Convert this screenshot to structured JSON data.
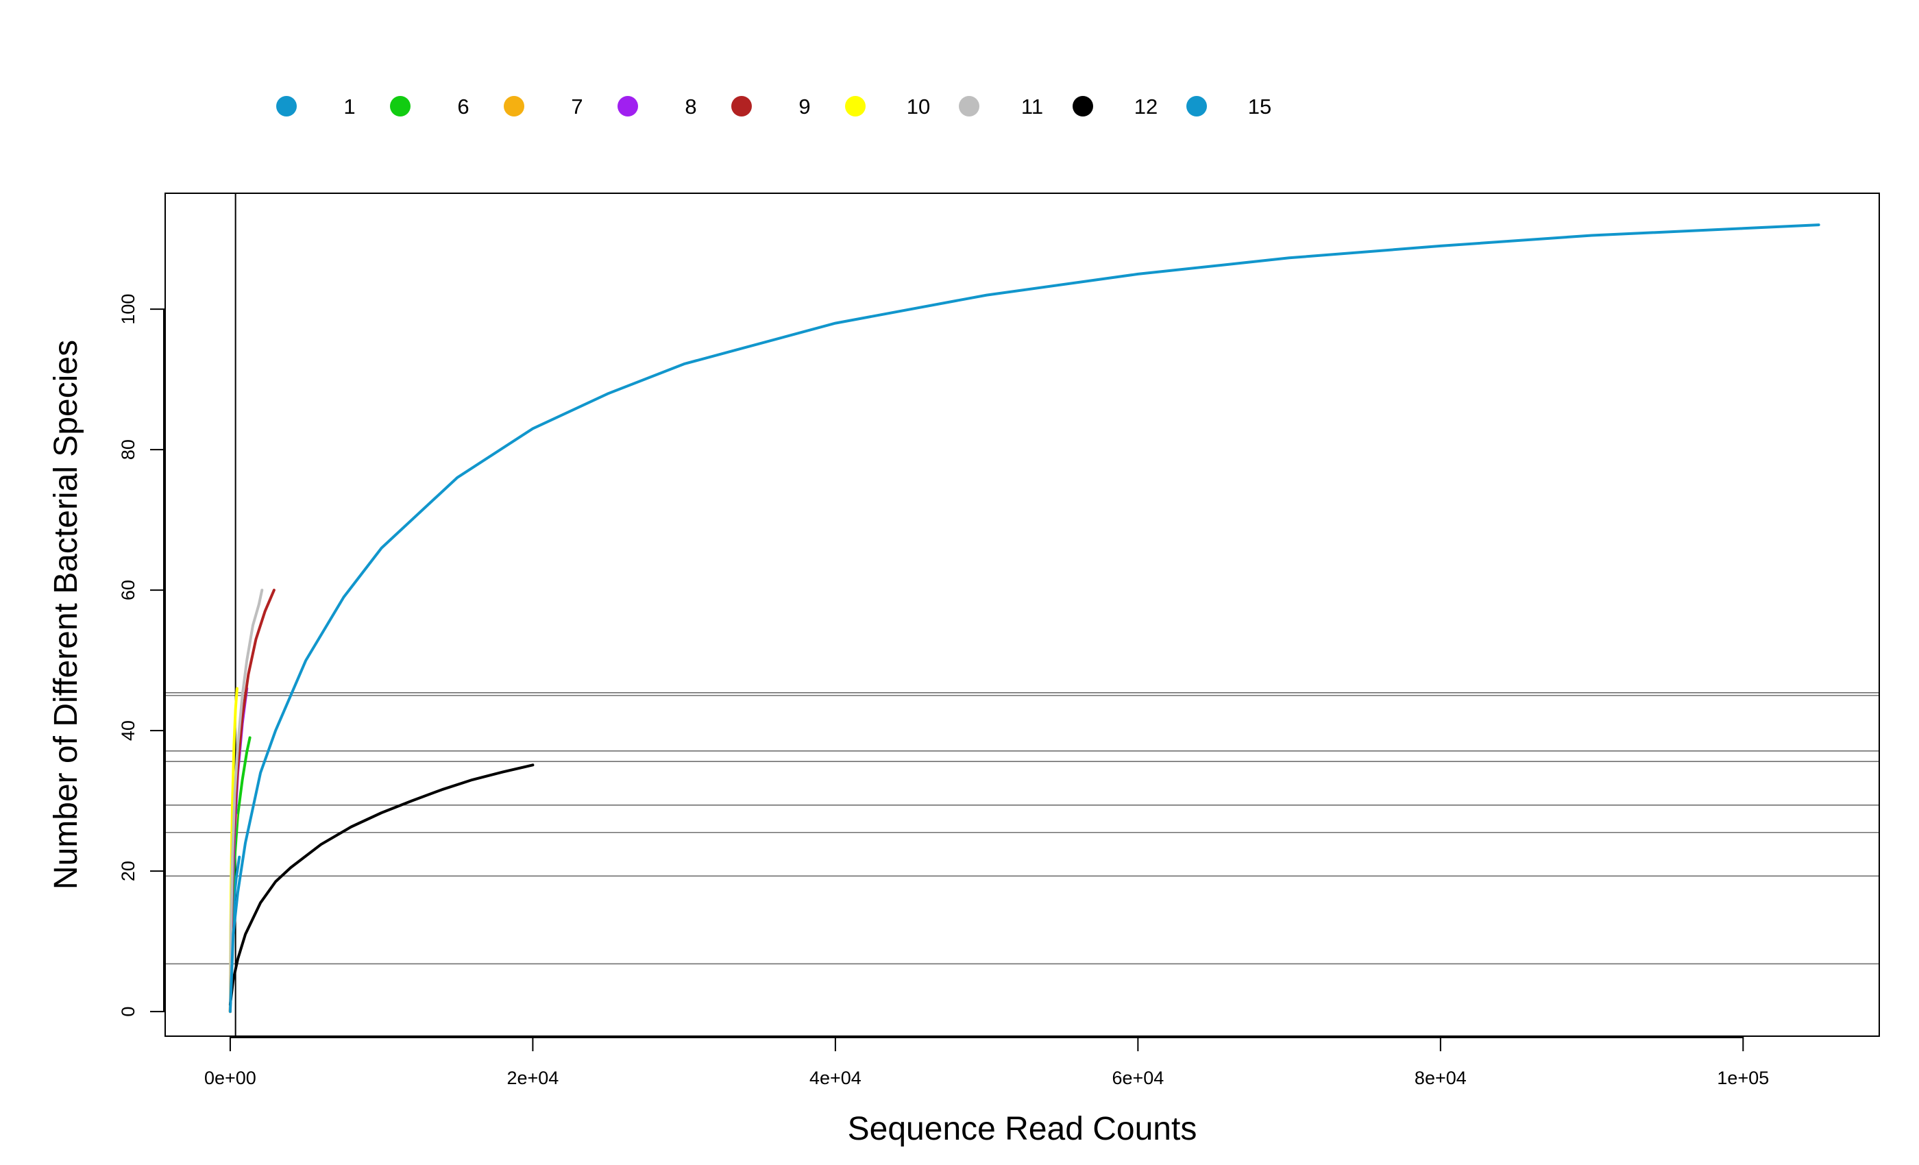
{
  "chart_data": {
    "type": "line",
    "title": "",
    "xlabel": "Sequence Read Counts",
    "ylabel": "Number of Different Bacterial Species",
    "xlim": [
      -4300,
      109000
    ],
    "ylim": [
      -3.5,
      116.5
    ],
    "xticks": [
      {
        "value": 0,
        "label": "0e+00"
      },
      {
        "value": 20000,
        "label": "2e+04"
      },
      {
        "value": 40000,
        "label": "4e+04"
      },
      {
        "value": 60000,
        "label": "6e+04"
      },
      {
        "value": 80000,
        "label": "8e+04"
      },
      {
        "value": 100000,
        "label": "1e+05"
      }
    ],
    "yticks": [
      {
        "value": 0,
        "label": "0"
      },
      {
        "value": 20,
        "label": "20"
      },
      {
        "value": 40,
        "label": "40"
      },
      {
        "value": 60,
        "label": "60"
      },
      {
        "value": 80,
        "label": "80"
      },
      {
        "value": 100,
        "label": "100"
      }
    ],
    "grid": false,
    "legend_position": "top",
    "vertical_reference_line": 350,
    "horizontal_reference_lines": [
      6.8,
      19.3,
      25.5,
      29.4,
      35.6,
      37.1,
      45.0,
      45.4
    ],
    "series": [
      {
        "name": "1",
        "color": "#1196CC",
        "x": [
          0,
          100,
          200,
          300,
          400,
          600
        ],
        "y": [
          0,
          10,
          14,
          17,
          19,
          22
        ]
      },
      {
        "name": "6",
        "color": "#11CC11",
        "x": [
          0,
          50,
          150,
          300,
          500,
          800,
          1100,
          1300
        ],
        "y": [
          0,
          8,
          16,
          22,
          28,
          33,
          37,
          39
        ]
      },
      {
        "name": "7",
        "color": "#F5B011",
        "x": [
          0,
          50,
          100,
          200,
          300,
          400
        ],
        "y": [
          0,
          10,
          16,
          22,
          26,
          28
        ]
      },
      {
        "name": "8",
        "color": "#A020F0",
        "x": [
          0,
          50,
          150,
          300,
          500,
          800,
          1100
        ],
        "y": [
          0,
          9,
          18,
          26,
          34,
          41,
          46
        ]
      },
      {
        "name": "9",
        "color": "#B22222",
        "x": [
          0,
          50,
          150,
          300,
          500,
          800,
          1200,
          1700,
          2300,
          2900
        ],
        "y": [
          0,
          10,
          20,
          28,
          35,
          42,
          48,
          53,
          57,
          60
        ]
      },
      {
        "name": "10",
        "color": "#FFFF00",
        "x": [
          0,
          30,
          80,
          150,
          250,
          350,
          450
        ],
        "y": [
          0,
          12,
          22,
          30,
          38,
          43,
          46
        ]
      },
      {
        "name": "11",
        "color": "#BEBEBE",
        "x": [
          0,
          50,
          150,
          300,
          500,
          800,
          1100,
          1500,
          1900,
          2100
        ],
        "y": [
          0,
          12,
          22,
          31,
          38,
          45,
          50,
          55,
          58,
          60
        ]
      },
      {
        "name": "12",
        "color": "#000000",
        "x": [
          0,
          200,
          500,
          1000,
          2000,
          3000,
          4000,
          6000,
          8000,
          10000,
          12000,
          14000,
          16000,
          18000,
          20000
        ],
        "y": [
          1,
          4.5,
          7.5,
          11,
          15.5,
          18.5,
          20.5,
          23.8,
          26.3,
          28.3,
          30,
          31.6,
          33,
          34.1,
          35.1
        ]
      },
      {
        "name": "15",
        "color": "#1196CC",
        "x": [
          0,
          200,
          500,
          1000,
          2000,
          3000,
          5000,
          7500,
          10000,
          15000,
          20000,
          25000,
          30000,
          40000,
          50000,
          60000,
          70000,
          80000,
          90000,
          100000,
          105000
        ],
        "y": [
          0,
          11,
          17,
          24,
          34,
          40,
          50,
          59,
          66,
          76,
          83,
          88,
          92.2,
          98,
          102,
          105,
          107.3,
          109,
          110.5,
          111.5,
          112
        ]
      }
    ]
  }
}
